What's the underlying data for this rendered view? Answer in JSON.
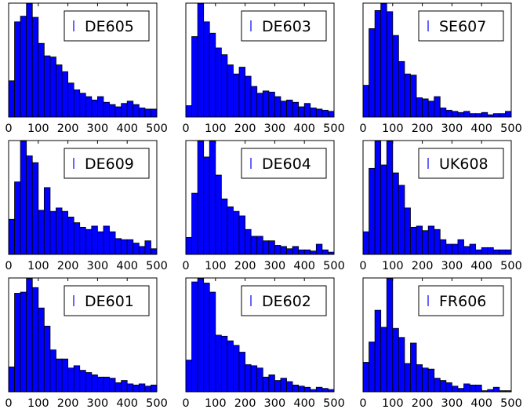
{
  "figure": {
    "bar_color": "#0000ff",
    "edge_color": "#000000",
    "background": "#ffffff"
  },
  "chart_data": [
    {
      "type": "bar",
      "legend": "DE605",
      "legend_placement": "top-right",
      "grid": false,
      "bin_width": 20,
      "xlim": [
        0,
        500
      ],
      "xticks": [
        0,
        100,
        200,
        300,
        400,
        500
      ],
      "ymax": 1.0,
      "values": [
        0.32,
        0.84,
        0.89,
        1.0,
        0.88,
        0.65,
        0.54,
        0.53,
        0.46,
        0.4,
        0.3,
        0.24,
        0.21,
        0.18,
        0.15,
        0.18,
        0.13,
        0.11,
        0.09,
        0.12,
        0.14,
        0.11,
        0.08,
        0.07,
        0.07
      ]
    },
    {
      "type": "bar",
      "legend": "DE603",
      "legend_placement": "top-right",
      "grid": false,
      "bin_width": 20,
      "xlim": [
        0,
        500
      ],
      "xticks": [
        0,
        100,
        200,
        300,
        400,
        500
      ],
      "ymax": 1.0,
      "values": [
        0.1,
        0.71,
        1.0,
        0.84,
        0.74,
        0.61,
        0.55,
        0.46,
        0.38,
        0.44,
        0.36,
        0.27,
        0.21,
        0.23,
        0.22,
        0.18,
        0.14,
        0.15,
        0.13,
        0.09,
        0.12,
        0.08,
        0.07,
        0.06,
        0.05
      ]
    },
    {
      "type": "bar",
      "legend": "SE607",
      "legend_placement": "top-right",
      "grid": false,
      "bin_width": 20,
      "xlim": [
        0,
        500
      ],
      "xticks": [
        0,
        100,
        200,
        300,
        400,
        500
      ],
      "ymax": 1.0,
      "values": [
        0.28,
        0.78,
        0.94,
        1.0,
        0.93,
        0.72,
        0.49,
        0.38,
        0.37,
        0.17,
        0.16,
        0.14,
        0.18,
        0.08,
        0.06,
        0.05,
        0.04,
        0.05,
        0.03,
        0.03,
        0.04,
        0.02,
        0.03,
        0.03,
        0.05
      ]
    },
    {
      "type": "bar",
      "legend": "DE609",
      "legend_placement": "top-right",
      "grid": false,
      "bin_width": 20,
      "xlim": [
        0,
        500
      ],
      "xticks": [
        0,
        100,
        200,
        300,
        400,
        500
      ],
      "ymax": 1.0,
      "values": [
        0.31,
        0.64,
        1.0,
        0.87,
        0.81,
        0.39,
        0.59,
        0.38,
        0.41,
        0.38,
        0.33,
        0.28,
        0.24,
        0.22,
        0.25,
        0.2,
        0.25,
        0.2,
        0.14,
        0.13,
        0.13,
        0.1,
        0.07,
        0.12,
        0.05
      ]
    },
    {
      "type": "bar",
      "legend": "DE604",
      "legend_placement": "top-right",
      "grid": false,
      "bin_width": 20,
      "xlim": [
        0,
        500
      ],
      "xticks": [
        0,
        100,
        200,
        300,
        400,
        500
      ],
      "ymax": 1.0,
      "values": [
        0.15,
        0.54,
        1.0,
        0.86,
        1.0,
        0.7,
        0.49,
        0.42,
        0.38,
        0.34,
        0.22,
        0.16,
        0.16,
        0.12,
        0.12,
        0.08,
        0.07,
        0.05,
        0.07,
        0.04,
        0.04,
        0.03,
        0.09,
        0.04,
        0.02
      ]
    },
    {
      "type": "bar",
      "legend": "UK608",
      "legend_placement": "top-right",
      "grid": false,
      "bin_width": 20,
      "xlim": [
        0,
        500
      ],
      "xticks": [
        0,
        100,
        200,
        300,
        400,
        500
      ],
      "ymax": 1.0,
      "values": [
        0.2,
        0.76,
        1.0,
        0.79,
        1.0,
        0.72,
        0.61,
        0.41,
        0.24,
        0.25,
        0.21,
        0.25,
        0.22,
        0.13,
        0.09,
        0.09,
        0.13,
        0.07,
        0.09,
        0.04,
        0.06,
        0.06,
        0.04,
        0.04,
        0.04
      ]
    },
    {
      "type": "bar",
      "legend": "DE601",
      "legend_placement": "top-right",
      "grid": false,
      "bin_width": 20,
      "xlim": [
        0,
        500
      ],
      "xticks": [
        0,
        100,
        200,
        300,
        400,
        500
      ],
      "ymax": 1.0,
      "values": [
        0.22,
        0.87,
        0.88,
        1.0,
        0.92,
        0.74,
        0.58,
        0.37,
        0.29,
        0.29,
        0.21,
        0.23,
        0.19,
        0.17,
        0.15,
        0.13,
        0.13,
        0.12,
        0.08,
        0.1,
        0.07,
        0.06,
        0.07,
        0.05,
        0.06
      ]
    },
    {
      "type": "bar",
      "legend": "DE602",
      "legend_placement": "top-right",
      "grid": false,
      "bin_width": 20,
      "xlim": [
        0,
        500
      ],
      "xticks": [
        0,
        100,
        200,
        300,
        400,
        500
      ],
      "ymax": 1.0,
      "values": [
        0.28,
        0.97,
        1.0,
        0.96,
        0.88,
        0.5,
        0.49,
        0.45,
        0.41,
        0.35,
        0.24,
        0.23,
        0.21,
        0.13,
        0.15,
        0.1,
        0.12,
        0.09,
        0.06,
        0.05,
        0.04,
        0.02,
        0.04,
        0.03,
        0.02
      ]
    },
    {
      "type": "bar",
      "legend": "FR606",
      "legend_placement": "top-right",
      "grid": false,
      "bin_width": 20,
      "xlim": [
        0,
        500
      ],
      "xticks": [
        0,
        100,
        200,
        300,
        400,
        500
      ],
      "ymax": 1.0,
      "values": [
        0.26,
        0.44,
        0.72,
        0.57,
        1.0,
        0.56,
        0.48,
        0.25,
        0.43,
        0.24,
        0.21,
        0.2,
        0.12,
        0.1,
        0.08,
        0.05,
        0.03,
        0.07,
        0.06,
        0.06,
        0.01,
        0.02,
        0.04,
        0.01,
        0.01
      ]
    }
  ]
}
